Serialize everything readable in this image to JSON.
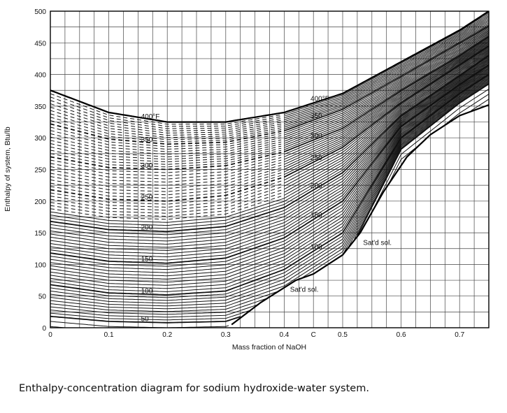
{
  "caption": "Enthalpy-concentration diagram for sodium hydroxide-water system.",
  "chart_data": {
    "type": "line",
    "xlabel": "Mass fraction of NaOH",
    "ylabel": "Enthalpy of system, Btu/lb",
    "xlim": [
      0,
      0.75
    ],
    "ylim": [
      0,
      500
    ],
    "x_ticks": [
      "0",
      "0.1",
      "0.2",
      "0.3",
      "0.4",
      "C",
      "0.5",
      "0.6",
      "0.7"
    ],
    "y_ticks": [
      "0",
      "50",
      "100",
      "150",
      "200",
      "250",
      "300",
      "350",
      "400",
      "450",
      "500"
    ],
    "grid": true,
    "isotherm_labels_left": [
      "400°F",
      "350",
      "300",
      "250",
      "200",
      "150",
      "100",
      "50"
    ],
    "isotherm_labels_right": [
      "400°F",
      "350",
      "300",
      "250",
      "200",
      "150",
      "100"
    ],
    "saturation_label_lower": "Sat'd sol.",
    "saturation_label_upper": "Sat'd sol.",
    "series": [
      {
        "temp_F": 400,
        "points": [
          [
            0,
            375
          ],
          [
            0.1,
            340
          ],
          [
            0.2,
            325
          ],
          [
            0.3,
            325
          ],
          [
            0.4,
            340
          ],
          [
            0.5,
            370
          ],
          [
            0.6,
            420
          ],
          [
            0.7,
            470
          ],
          [
            0.75,
            500
          ]
        ]
      },
      {
        "temp_F": 350,
        "points": [
          [
            0,
            322
          ],
          [
            0.1,
            298
          ],
          [
            0.2,
            290
          ],
          [
            0.3,
            293
          ],
          [
            0.4,
            311
          ],
          [
            0.5,
            345
          ],
          [
            0.6,
            397
          ],
          [
            0.7,
            450
          ],
          [
            0.75,
            477
          ]
        ]
      },
      {
        "temp_F": 300,
        "points": [
          [
            0,
            270
          ],
          [
            0.1,
            253
          ],
          [
            0.2,
            250
          ],
          [
            0.3,
            256
          ],
          [
            0.4,
            278
          ],
          [
            0.5,
            315
          ],
          [
            0.6,
            375
          ],
          [
            0.7,
            430
          ],
          [
            0.75,
            460
          ]
        ]
      },
      {
        "temp_F": 250,
        "points": [
          [
            0,
            218
          ],
          [
            0.1,
            203
          ],
          [
            0.2,
            200
          ],
          [
            0.3,
            209
          ],
          [
            0.4,
            238
          ],
          [
            0.5,
            285
          ],
          [
            0.6,
            355
          ],
          [
            0.7,
            415
          ],
          [
            0.75,
            445
          ]
        ]
      },
      {
        "temp_F": 200,
        "points": [
          [
            0,
            168
          ],
          [
            0.1,
            155
          ],
          [
            0.2,
            152
          ],
          [
            0.3,
            160
          ],
          [
            0.4,
            190
          ],
          [
            0.5,
            245
          ],
          [
            0.6,
            335
          ],
          [
            0.7,
            398
          ],
          [
            0.75,
            430
          ]
        ]
      },
      {
        "temp_F": 150,
        "points": [
          [
            0,
            118
          ],
          [
            0.1,
            105
          ],
          [
            0.2,
            102
          ],
          [
            0.3,
            110
          ],
          [
            0.4,
            142
          ],
          [
            0.5,
            200
          ],
          [
            0.6,
            318
          ],
          [
            0.7,
            384
          ],
          [
            0.75,
            415
          ]
        ]
      },
      {
        "temp_F": 100,
        "points": [
          [
            0,
            68
          ],
          [
            0.1,
            55
          ],
          [
            0.2,
            52
          ],
          [
            0.3,
            58
          ],
          [
            0.4,
            92
          ],
          [
            0.5,
            150
          ],
          [
            0.6,
            300
          ],
          [
            0.7,
            370
          ],
          [
            0.75,
            400
          ]
        ]
      },
      {
        "temp_F": 50,
        "points": [
          [
            0,
            18
          ],
          [
            0.1,
            10
          ],
          [
            0.2,
            8
          ],
          [
            0.3,
            10
          ],
          [
            0.4,
            40
          ],
          [
            0.5,
            100
          ],
          [
            0.6,
            282
          ],
          [
            0.7,
            355
          ],
          [
            0.75,
            385
          ]
        ]
      }
    ],
    "saturation_curve": [
      [
        0.31,
        5
      ],
      [
        0.36,
        40
      ],
      [
        0.42,
        75
      ],
      [
        0.45,
        85
      ],
      [
        0.5,
        115
      ],
      [
        0.53,
        150
      ],
      [
        0.57,
        215
      ],
      [
        0.61,
        270
      ],
      [
        0.65,
        305
      ],
      [
        0.7,
        335
      ],
      [
        0.75,
        352
      ]
    ]
  }
}
